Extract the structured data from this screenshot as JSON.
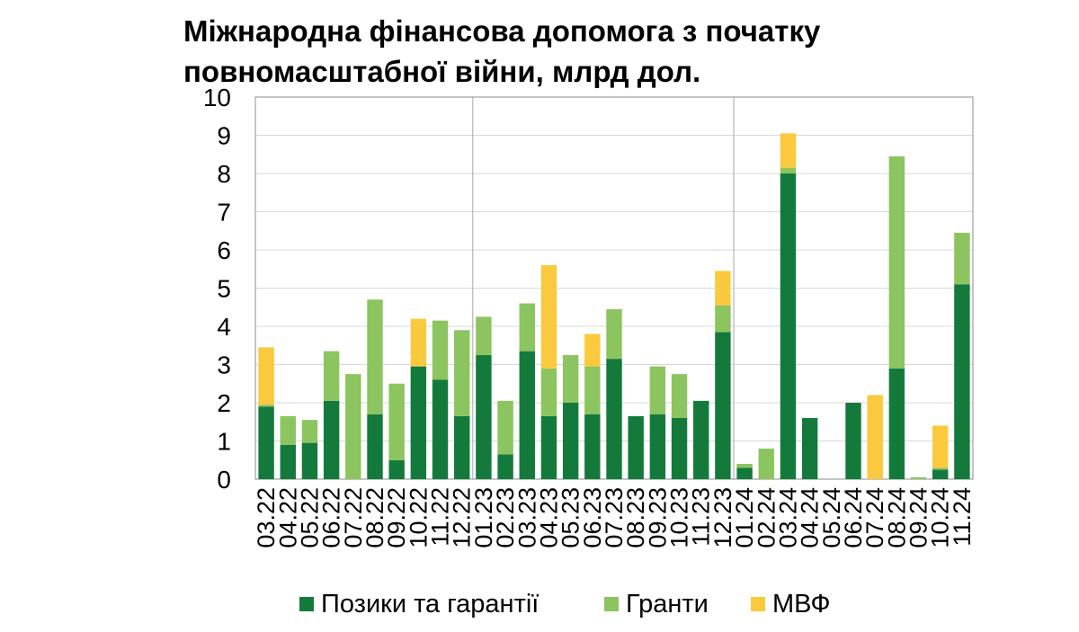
{
  "chart_data": {
    "type": "bar",
    "stacked": true,
    "title": "Міжнародна фінансова допомога з початку повномасштабної війни, млрд дол.",
    "title_lines": [
      "Міжнародна фінансова допомога з початку",
      "повномасштабної війни, млрд дол."
    ],
    "xlabel": "",
    "ylabel": "",
    "ylim": [
      0,
      10
    ],
    "yticks": [
      "0",
      "1",
      "2",
      "3",
      "4",
      "5",
      "6",
      "7",
      "8",
      "9",
      "10"
    ],
    "grid": true,
    "year_separators_after": [
      "12.22",
      "12.23"
    ],
    "categories": [
      "03.22",
      "04.22",
      "05.22",
      "06.22",
      "07.22",
      "08.22",
      "09.22",
      "10.22",
      "11.22",
      "12.22",
      "01.23",
      "02.23",
      "03.23",
      "04.23",
      "05.23",
      "06.23",
      "07.23",
      "08.23",
      "09.23",
      "10.23",
      "11.23",
      "12.23",
      "01.24",
      "02.24",
      "03.24",
      "04.24",
      "05.24",
      "06.24",
      "07.24",
      "08.24",
      "09.24",
      "10.24",
      "11.24"
    ],
    "series": [
      {
        "name": "Позики та гарантії",
        "color": "#137a3c",
        "values": [
          1.9,
          0.9,
          0.95,
          2.05,
          0,
          1.7,
          0.5,
          2.95,
          2.6,
          1.65,
          3.25,
          0.65,
          3.35,
          1.65,
          2.0,
          1.7,
          3.15,
          1.65,
          1.7,
          1.6,
          2.05,
          3.85,
          0.3,
          0,
          8.0,
          1.6,
          0,
          2.0,
          0,
          2.9,
          0,
          0.25,
          5.1
        ]
      },
      {
        "name": "Гранти",
        "color": "#8cc45f",
        "values": [
          0.05,
          0.75,
          0.6,
          1.3,
          2.75,
          3.0,
          2.0,
          0,
          1.55,
          2.25,
          1.0,
          1.4,
          1.25,
          1.25,
          1.25,
          1.25,
          1.3,
          0,
          1.25,
          1.15,
          0,
          0.7,
          0.1,
          0.8,
          0.15,
          0,
          0,
          0,
          0,
          5.55,
          0.05,
          0.05,
          1.35
        ]
      },
      {
        "name": "МВФ",
        "color": "#fbc93d",
        "values": [
          1.5,
          0,
          0,
          0,
          0,
          0,
          0,
          1.25,
          0,
          0,
          0,
          0,
          0,
          2.7,
          0,
          0.85,
          0,
          0,
          0,
          0,
          0,
          0.9,
          0,
          0,
          0.9,
          0,
          0,
          0,
          2.2,
          0,
          0,
          1.1,
          0
        ]
      }
    ],
    "legend": [
      "Позики та гарантії",
      "Гранти",
      "МВФ"
    ],
    "legend_position": "bottom"
  }
}
